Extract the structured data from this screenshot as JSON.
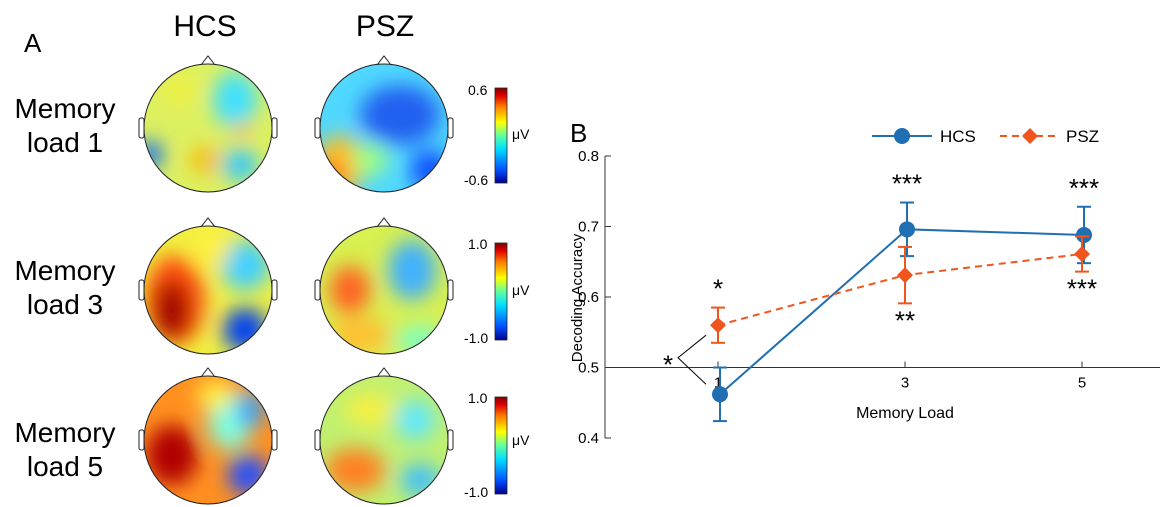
{
  "panel_a": {
    "label": "A",
    "columns": [
      "HCS",
      "PSZ"
    ],
    "rows": [
      {
        "label_line1": "Memory",
        "label_line2": "load 1",
        "cbar_max": "0.6",
        "cbar_min": "-0.6",
        "unit": "μV"
      },
      {
        "label_line1": "Memory",
        "label_line2": "load 3",
        "cbar_max": "1.0",
        "cbar_min": "-1.0",
        "unit": "μV"
      },
      {
        "label_line1": "Memory",
        "label_line2": "load 5",
        "cbar_max": "1.0",
        "cbar_min": "-1.0",
        "unit": "μV"
      }
    ],
    "colormap": [
      "#00008f",
      "#0050ff",
      "#00dfff",
      "#60ffa0",
      "#ffff00",
      "#ff8000",
      "#e00000",
      "#800000"
    ]
  },
  "panel_b": {
    "label": "B"
  },
  "chart_data": {
    "type": "line",
    "x": [
      1,
      3,
      5
    ],
    "xlabel": "Memory Load",
    "ylabel": "Decoding Accuracy",
    "ylim": [
      0.4,
      0.8
    ],
    "yticks": [
      "0.4",
      "0.5",
      "0.6",
      "0.7",
      "0.8"
    ],
    "xticks": [
      "1",
      "3",
      "5"
    ],
    "chance_level": 0.5,
    "legend_position": "top-right",
    "series": [
      {
        "name": "HCS",
        "values": [
          0.462,
          0.696,
          0.688
        ],
        "err": [
          0.038,
          0.038,
          0.04
        ],
        "color": "#1f6fb2",
        "marker": "circle",
        "dash": "solid",
        "stars": [
          "",
          "***",
          "***"
        ]
      },
      {
        "name": "PSZ",
        "values": [
          0.56,
          0.631,
          0.661
        ],
        "err": [
          0.025,
          0.04,
          0.025
        ],
        "color": "#f0551e",
        "marker": "diamond",
        "dash": "dashed",
        "stars": [
          "*",
          "**",
          "***"
        ]
      }
    ],
    "comparison_annotation": "*"
  }
}
